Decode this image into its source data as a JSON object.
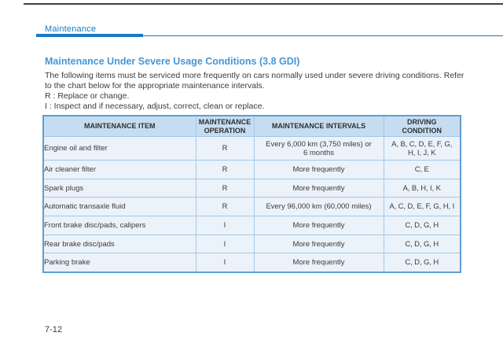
{
  "page": {
    "running_header": "Maintenance",
    "footer_page_number": "7-12"
  },
  "section": {
    "title": "Maintenance Under Severe Usage Conditions (3.8 GDI)",
    "intro": "The following items must be serviced more frequently on cars normally used under severe driving conditions. Refer\nto the chart below for the appropriate maintenance intervals.",
    "legend": [
      "R : Replace or change.",
      "I  : Inspect and if necessary, adjust, correct, clean or replace."
    ]
  },
  "table": {
    "columns": [
      "MAINTENANCE ITEM",
      "MAINTENANCE\nOPERATION",
      "MAINTENANCE INTERVALS",
      "DRIVING\nCONDITION"
    ],
    "rows": [
      {
        "item": "Engine oil and filter",
        "operation": "R",
        "interval": "Every 6,000 km (3,750 miles) or\n6 months",
        "condition": "A, B, C, D, E, F, G,\nH, I, J, K"
      },
      {
        "item": "Air cleaner filter",
        "operation": "R",
        "interval": "More frequently",
        "condition": "C, E"
      },
      {
        "item": "Spark plugs",
        "operation": "R",
        "interval": "More frequently",
        "condition": "A, B, H, I, K"
      },
      {
        "item": "Automatic transaxle fluid",
        "operation": "R",
        "interval": "Every 96,000 km (60,000 miles)",
        "condition": "A, C, D, E, F, G, H, I"
      },
      {
        "item": "Front brake disc/pads, calipers",
        "operation": "I",
        "interval": "More frequently",
        "condition": "C, D, G, H"
      },
      {
        "item": "Rear brake disc/pads",
        "operation": "I",
        "interval": "More frequently",
        "condition": "C, D, G, H"
      },
      {
        "item": "Parking brake",
        "operation": "I",
        "interval": "More frequently",
        "condition": "C, D, G, H"
      }
    ]
  },
  "colors": {
    "accent_blue": "#187ac4",
    "title_blue": "#4796d6",
    "table_header_bg": "#c6ddf1",
    "table_row_bg": "#ebf2fa",
    "table_border": "#5e9ed3"
  }
}
